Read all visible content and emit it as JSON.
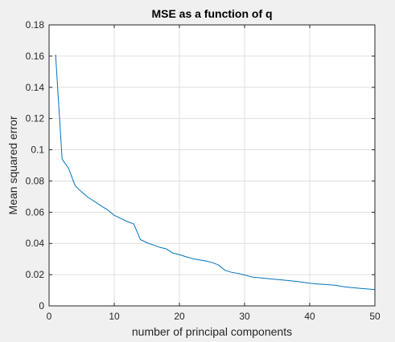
{
  "chart_data": {
    "type": "line",
    "title": "MSE as a function of q",
    "xlabel": "number of principal components",
    "ylabel": "Mean squared error",
    "xlim": [
      0,
      50
    ],
    "ylim": [
      0,
      0.18
    ],
    "xticks": [
      0,
      10,
      20,
      30,
      40,
      50
    ],
    "xtick_labels": [
      "0",
      "10",
      "20",
      "30",
      "40",
      "50"
    ],
    "yticks": [
      0,
      0.02,
      0.04,
      0.06,
      0.08,
      0.1,
      0.12,
      0.14,
      0.16,
      0.18
    ],
    "ytick_labels": [
      "0",
      "0.02",
      "0.04",
      "0.06",
      "0.08",
      "0.1",
      "0.12",
      "0.14",
      "0.16",
      "0.18"
    ],
    "grid": true,
    "series": [
      {
        "color": "#0072bd",
        "x": [
          1,
          2,
          3,
          4,
          5,
          6,
          7,
          8,
          9,
          10,
          11,
          12,
          13,
          14,
          15,
          16,
          17,
          18,
          19,
          20,
          21,
          22,
          23,
          24,
          25,
          26,
          27,
          28,
          29,
          30,
          31,
          32,
          33,
          34,
          35,
          36,
          37,
          38,
          39,
          40,
          41,
          42,
          43,
          44,
          45,
          46,
          47,
          48,
          49,
          50
        ],
        "y": [
          0.161,
          0.094,
          0.088,
          0.077,
          0.073,
          0.0695,
          0.0668,
          0.064,
          0.0615,
          0.058,
          0.056,
          0.054,
          0.0525,
          0.0425,
          0.0405,
          0.039,
          0.0375,
          0.0365,
          0.0338,
          0.0328,
          0.0315,
          0.0303,
          0.0295,
          0.0288,
          0.0278,
          0.0262,
          0.0228,
          0.0215,
          0.0208,
          0.0198,
          0.0186,
          0.0181,
          0.0177,
          0.0173,
          0.0169,
          0.0165,
          0.0161,
          0.0157,
          0.0151,
          0.0145,
          0.0141,
          0.0138,
          0.0135,
          0.0132,
          0.0124,
          0.0119,
          0.0115,
          0.0111,
          0.0108,
          0.0104
        ]
      }
    ]
  }
}
